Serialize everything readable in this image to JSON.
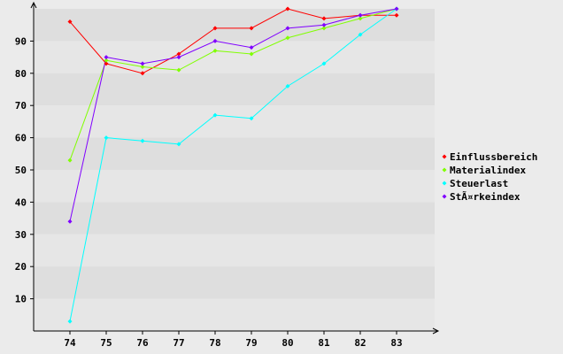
{
  "chart_data": {
    "type": "line",
    "title": "",
    "xlabel": "",
    "ylabel": "",
    "categories": [
      "74",
      "75",
      "76",
      "77",
      "78",
      "79",
      "80",
      "81",
      "82",
      "83"
    ],
    "ylim": [
      0,
      100
    ],
    "yticks": [
      10,
      20,
      30,
      40,
      50,
      60,
      70,
      80,
      90
    ],
    "grid": "horizontal alternating bands",
    "legend": "right",
    "series": [
      {
        "name": "Einflussbereich",
        "color": "#ff0000",
        "values": [
          96,
          83,
          80,
          86,
          94,
          94,
          100,
          97,
          98,
          98
        ]
      },
      {
        "name": "Materialindex",
        "color": "#80ff00",
        "values": [
          53,
          84,
          82,
          81,
          87,
          86,
          91,
          94,
          97,
          100
        ]
      },
      {
        "name": "Steuerlast",
        "color": "#00ffff",
        "values": [
          3,
          60,
          59,
          58,
          67,
          66,
          76,
          83,
          92,
          100
        ]
      },
      {
        "name": "StÃ¤rkeindex",
        "color": "#8000ff",
        "values": [
          34,
          85,
          83,
          85,
          90,
          88,
          94,
          95,
          98,
          100
        ]
      }
    ]
  }
}
